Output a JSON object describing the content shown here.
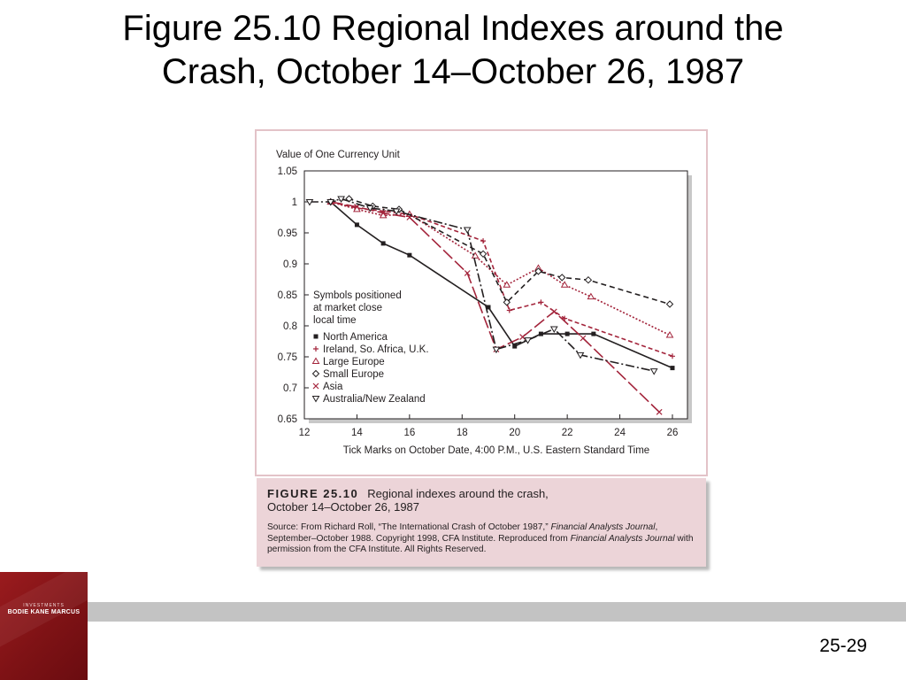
{
  "slide": {
    "title_line1": "Figure 25.10 Regional Indexes around the",
    "title_line2": "Crash, October 14–October 26, 1987",
    "page_number": "25-29"
  },
  "caption": {
    "figure_label": "FIGURE 25.10",
    "text_line1": "Regional indexes around the crash,",
    "text_line2": "October 14–October 26, 1987",
    "source_prefix": "Source: From Richard Roll, “The International Crash of October 1987,” ",
    "source_journal": "Financial Analysts Journal",
    "source_middle": ", September–October 1988. Copyright 1998, CFA Institute. Reproduced from ",
    "source_journal2": "Financial Analysts Journal",
    "source_suffix": " with permission from the CFA Institute. All Rights Reserved."
  },
  "logo": {
    "top_text": "INVESTMENTS",
    "authors": "BODIE  KANE  MARCUS"
  },
  "colors": {
    "black_series": "#231f20",
    "red_series": "#a3243b",
    "caption_bg": "#ecd4d8",
    "frame_border": "#e3c3c8",
    "footer_bar": "#c3c3c3",
    "logo_red": "#8b1518"
  },
  "chart_data": {
    "type": "line",
    "ylabel": "Value of One Currency Unit",
    "xlabel": "Tick Marks on October Date, 4:00 P.M., U.S. Eastern Standard Time",
    "xlim": [
      12,
      26.4
    ],
    "ylim": [
      0.65,
      1.05
    ],
    "xticks": [
      12,
      14,
      16,
      18,
      20,
      22,
      24,
      26
    ],
    "yticks": [
      0.65,
      0.7,
      0.75,
      0.8,
      0.85,
      0.9,
      0.95,
      1,
      1.05
    ],
    "ytick_labels": [
      "0.65",
      "0.7",
      "0.75",
      "0.8",
      "0.85",
      "0.9",
      "0.95",
      "1",
      "1.05"
    ],
    "grid": false,
    "legend_title": [
      "Symbols positioned",
      "at market close",
      "local time"
    ],
    "legend_placement": "bottom-left",
    "series": [
      {
        "name": "North America",
        "marker": "square",
        "color": "#231f20",
        "dash": "solid",
        "x": [
          13,
          14,
          15,
          16,
          19,
          20,
          21,
          22,
          23,
          26
        ],
        "y": [
          1.0,
          0.963,
          0.933,
          0.914,
          0.83,
          0.767,
          0.787,
          0.787,
          0.787,
          0.732
        ]
      },
      {
        "name": "Ireland, So. Africa, U.K.",
        "marker": "plus",
        "color": "#a3243b",
        "dash": "5,3",
        "x": [
          13,
          14,
          15,
          16,
          18.8,
          19.8,
          21,
          21.9,
          26
        ],
        "y": [
          1.0,
          0.99,
          0.985,
          0.98,
          0.937,
          0.825,
          0.838,
          0.812,
          0.751
        ]
      },
      {
        "name": "Large Europe",
        "marker": "triangle-up",
        "color": "#a3243b",
        "dash": "2,2",
        "x": [
          13,
          14,
          15,
          16,
          18.5,
          19.7,
          20.9,
          21.9,
          22.9,
          25.9
        ],
        "y": [
          1.0,
          0.988,
          0.978,
          0.98,
          0.913,
          0.866,
          0.893,
          0.866,
          0.847,
          0.785
        ]
      },
      {
        "name": "Small Europe",
        "marker": "diamond",
        "color": "#231f20",
        "dash": "6,4",
        "x": [
          13,
          13.7,
          14.6,
          15.6,
          18.8,
          19.7,
          20.9,
          21.8,
          22.8,
          25.9
        ],
        "y": [
          1.0,
          1.005,
          0.993,
          0.988,
          0.916,
          0.838,
          0.888,
          0.878,
          0.874,
          0.835
        ]
      },
      {
        "name": "Asia",
        "marker": "x",
        "color": "#a3243b",
        "dash": "14,4",
        "x": [
          13,
          14,
          15,
          16,
          18.2,
          19.3,
          20.3,
          21.5,
          22.6,
          25.5
        ],
        "y": [
          1.0,
          0.992,
          0.982,
          0.975,
          0.885,
          0.762,
          0.782,
          0.823,
          0.78,
          0.661
        ]
      },
      {
        "name": "Australia/New Zealand",
        "marker": "triangle-down",
        "color": "#231f20",
        "dash": "10,3,2,3",
        "x": [
          12.2,
          13,
          13.4,
          14.5,
          15.5,
          18.2,
          19.3,
          20.5,
          21.5,
          22.5,
          25.3
        ],
        "y": [
          1.0,
          1.0,
          1.005,
          0.99,
          0.985,
          0.955,
          0.762,
          0.777,
          0.795,
          0.753,
          0.727
        ]
      }
    ]
  }
}
